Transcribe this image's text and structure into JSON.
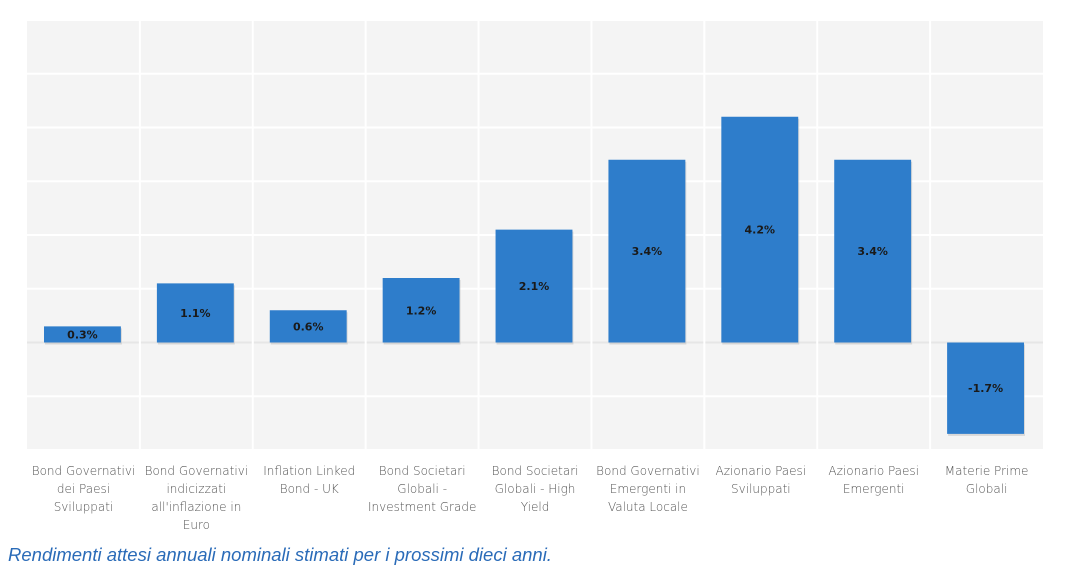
{
  "chart_data": {
    "type": "bar",
    "title": "",
    "xlabel": "",
    "ylabel": "",
    "ylim": [
      -2,
      6
    ],
    "grid": true,
    "categories": [
      "Bond Governativi dei Paesi Sviluppati",
      "Bond Governativi indicizzati all'inflazione in Euro",
      "Inflation Linked Bond - UK",
      "Bond Societari Globali - Investment Grade",
      "Bond Societari Globali - High Yield",
      "Bond Governativi Emergenti in Valuta Locale",
      "Azionario Paesi Sviluppati",
      "Azionario Paesi Emergenti",
      "Materie Prime Globali"
    ],
    "values": [
      0.3,
      1.1,
      0.6,
      1.2,
      2.1,
      3.4,
      4.2,
      3.4,
      -1.7
    ],
    "data_labels": [
      "0.3%",
      "1.1%",
      "0.6%",
      "1.2%",
      "2.1%",
      "3.4%",
      "4.2%",
      "3.4%",
      "-1.7%"
    ],
    "colors": {
      "bar": "#2e7dcb",
      "background": "#f4f4f4",
      "grid": "#ffffff"
    }
  },
  "caption": "Rendimenti attesi annuali nominali stimati per i prossimi dieci anni."
}
